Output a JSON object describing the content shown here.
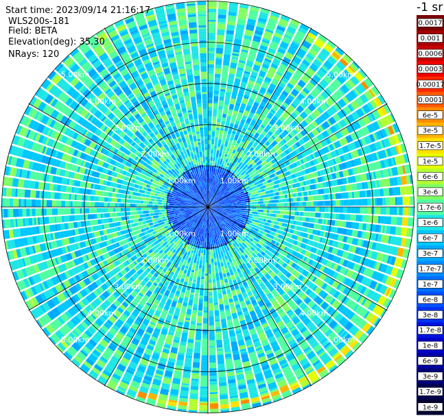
{
  "header": {
    "start_time": "Start time: 2023/09/14 21:16:17",
    "instrument": "WLS200s-181",
    "field": "Field: BETA",
    "elevation": "Elevation(deg): 35.30",
    "nrays": "NRays: 120"
  },
  "colorbar": {
    "unit": "-1 sr",
    "entries": [
      {
        "label": "0.0017",
        "color": "#7a0000"
      },
      {
        "label": "0.001",
        "color": "#a50000"
      },
      {
        "label": "0.0006",
        "color": "#c80000"
      },
      {
        "label": "0.0003",
        "color": "#f00000"
      },
      {
        "label": "0.00017",
        "color": "#ff2800"
      },
      {
        "label": "0.0001",
        "color": "#ff5a00"
      },
      {
        "label": "6e-5",
        "color": "#ff8c00"
      },
      {
        "label": "3e-5",
        "color": "#ffb400"
      },
      {
        "label": "1.7e-5",
        "color": "#ffe000"
      },
      {
        "label": "1e-5",
        "color": "#e6ff00"
      },
      {
        "label": "6e-6",
        "color": "#b4ff32"
      },
      {
        "label": "3e-6",
        "color": "#82ff64"
      },
      {
        "label": "1.7e-6",
        "color": "#50ffa0"
      },
      {
        "label": "1e-6",
        "color": "#1ee6e6"
      },
      {
        "label": "6e-7",
        "color": "#00c8ff"
      },
      {
        "label": "3e-7",
        "color": "#00aaff"
      },
      {
        "label": "1.7e-7",
        "color": "#008cff"
      },
      {
        "label": "1e-7",
        "color": "#006eff"
      },
      {
        "label": "6e-8",
        "color": "#0050ff"
      },
      {
        "label": "3e-8",
        "color": "#0032f0"
      },
      {
        "label": "1.7e-8",
        "color": "#0014dc"
      },
      {
        "label": "1e-8",
        "color": "#0000c8"
      },
      {
        "label": "6e-9",
        "color": "#0000a0"
      },
      {
        "label": "3e-9",
        "color": "#000078"
      },
      {
        "label": "1.7e-9",
        "color": "#000050"
      },
      {
        "label": "1e-9",
        "color": "#000032"
      }
    ]
  },
  "chart_data": {
    "type": "heatmap",
    "projection": "polar PPI",
    "field": "BETA",
    "n_rays": 120,
    "range_rings_km": [
      1.0,
      2.0,
      3.0,
      4.0,
      5.0
    ],
    "ring_labels": [
      "1.00km",
      "2.00km",
      "3.00km",
      "4.00km",
      "5.00km"
    ],
    "max_range_km": 5.0,
    "spokes_deg": [
      0,
      30,
      60,
      90,
      120,
      150,
      180,
      210,
      240,
      270,
      300,
      330
    ],
    "grid": true,
    "colorbar_scale": "log",
    "colorbar_range": [
      1e-09,
      0.0017
    ],
    "dominant_value_near_range": 1e-06,
    "inner_region_value_within_1km": 6e-08,
    "enhanced_arc": {
      "description": "high backscatter near max range on the south-east side",
      "azimuth_deg_range": [
        30,
        200
      ],
      "peak_value": 0.0001
    }
  },
  "colors": {
    "background": "#ffffff",
    "grid_lines": "#000000",
    "ring_label_text": "#ffffff"
  }
}
